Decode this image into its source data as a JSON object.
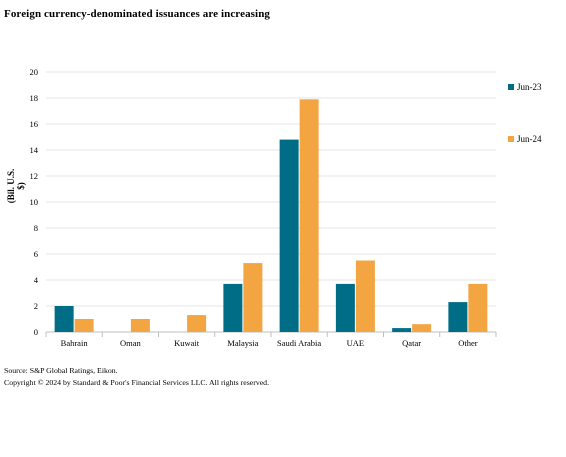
{
  "chart_data": {
    "type": "bar",
    "title": "Foreign currency-denominated issuances are increasing",
    "xlabel": "",
    "ylabel": "(Bil. U.S. $)",
    "categories": [
      "Bahrain",
      "Oman",
      "Kuwait",
      "Malaysia",
      "Saudi Arabia",
      "UAE",
      "Qatar",
      "Other"
    ],
    "series": [
      {
        "name": "Jun-23",
        "color": "#006d87",
        "values": [
          2.0,
          0,
          0,
          3.7,
          14.8,
          3.7,
          0.3,
          2.3
        ]
      },
      {
        "name": "Jun-24",
        "color": "#f2a541",
        "values": [
          1.0,
          1.0,
          1.3,
          5.3,
          17.9,
          5.5,
          0.6,
          3.7
        ]
      }
    ],
    "ylim": [
      0,
      20
    ],
    "yticks": [
      "0",
      "2",
      "4",
      "6",
      "8",
      "10",
      "12",
      "14",
      "16",
      "18",
      "20"
    ],
    "grid": true,
    "legend_placement": "right"
  },
  "footer": {
    "source": "Source: S&P Global Ratings, Eikon.",
    "copyright": "Copyright © 2024 by Standard & Poor's Financial Services LLC. All rights reserved."
  }
}
